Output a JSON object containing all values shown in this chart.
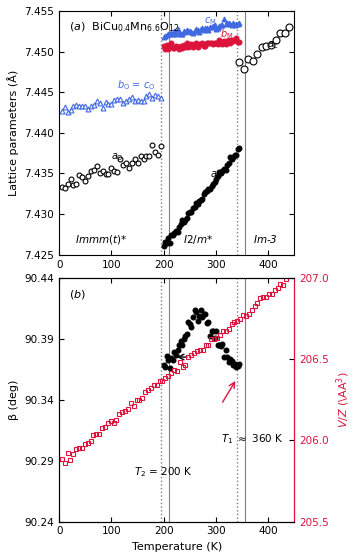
{
  "ylabel_a": "Lattice parameters (Å)",
  "ylabel_b": "β (deg)",
  "ylabel_b2": "V/Z (Å³)",
  "xlabel": "Temperature (K)",
  "ylim_a": [
    7.425,
    7.455
  ],
  "ylim_b": [
    90.24,
    90.44
  ],
  "ylim_b2": [
    205.5,
    207.0
  ],
  "xlim": [
    0,
    450
  ],
  "xticks": [
    0,
    100,
    200,
    300,
    400
  ],
  "yticks_a": [
    7.425,
    7.43,
    7.435,
    7.44,
    7.445,
    7.45,
    7.455
  ],
  "yticks_b": [
    90.24,
    90.29,
    90.34,
    90.39,
    90.44
  ],
  "yticks_b2": [
    205.5,
    206.0,
    206.5,
    207.0
  ],
  "vline1_dotted": 195,
  "vline2_solid": 210,
  "vline3_dotted": 340,
  "vline4_solid": 355,
  "color_blue": "#4169E1",
  "color_red": "#DC143C",
  "color_black": "#000000",
  "background": "#ffffff"
}
